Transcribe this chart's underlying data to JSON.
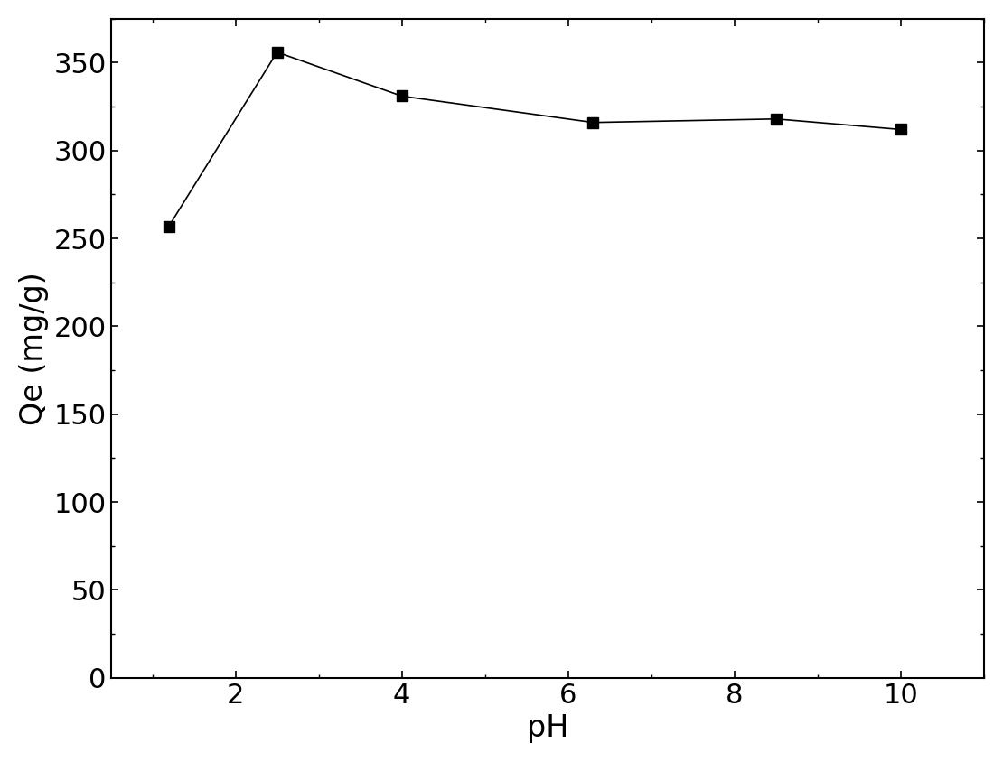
{
  "x": [
    1.2,
    2.5,
    4,
    6.3,
    8.5,
    10
  ],
  "y": [
    257,
    356,
    331,
    316,
    318,
    312
  ],
  "xlabel": "pH",
  "ylabel": "Qe (mg/g)",
  "xlim": [
    0.5,
    11
  ],
  "ylim": [
    0,
    375
  ],
  "yticks": [
    0,
    50,
    100,
    150,
    200,
    250,
    300,
    350
  ],
  "xticks": [
    2,
    4,
    6,
    8,
    10
  ],
  "marker": "s",
  "marker_size": 8,
  "marker_color": "black",
  "line_color": "black",
  "line_width": 1.2,
  "xlabel_fontsize": 24,
  "ylabel_fontsize": 24,
  "tick_fontsize": 22,
  "background_color": "#ffffff"
}
